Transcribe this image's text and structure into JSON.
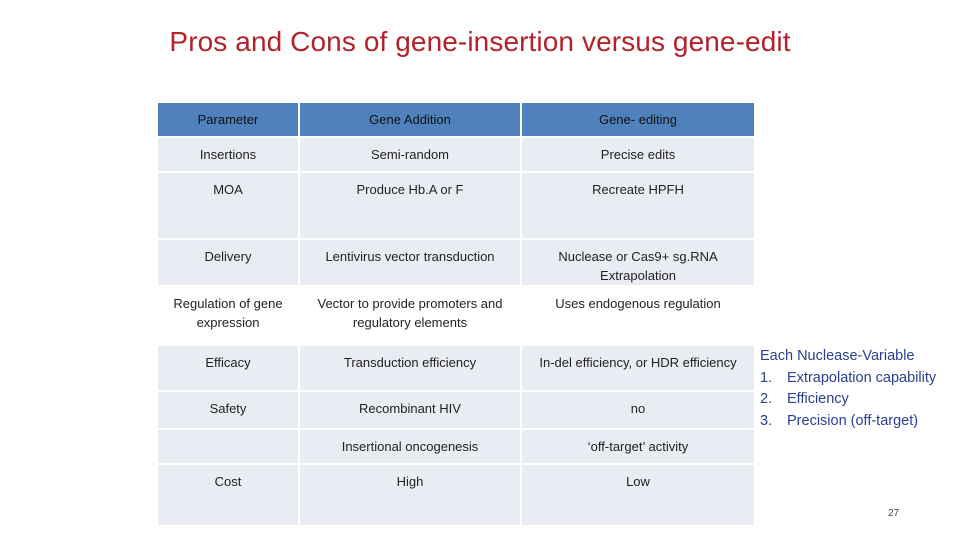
{
  "title": "Pros and Cons of gene-insertion versus gene-edit",
  "table": {
    "headers": [
      "Parameter",
      "Gene Addition",
      "Gene- editing"
    ],
    "rows": [
      [
        "Insertions",
        "Semi-random",
        "Precise edits"
      ],
      [
        "MOA",
        "Produce Hb.A or F",
        "Recreate HPFH"
      ],
      [
        "Delivery",
        "Lentivirus vector transduction",
        "Nuclease or Cas9+ sg.RNA Extrapolation"
      ],
      [
        "Regulation of gene expression",
        "Vector to provide promoters and regulatory elements",
        "Uses endogenous regulation"
      ],
      [
        "Efficacy",
        "Transduction efficiency",
        "In-del efficiency, or HDR efficiency"
      ],
      [
        "Safety",
        "Recombinant HIV",
        "no"
      ],
      [
        "",
        "Insertional oncogenesis",
        "‘off-target’ activity"
      ],
      [
        "Cost",
        "High",
        "Low"
      ]
    ]
  },
  "note": {
    "heading": "Each Nuclease-Variable",
    "items": [
      {
        "num": "1.",
        "text": "Extrapolation capability"
      },
      {
        "num": "2.",
        "text": "Efficiency"
      },
      {
        "num": "3.",
        "text": "Precision (off-target)"
      }
    ]
  },
  "page_number": "27"
}
